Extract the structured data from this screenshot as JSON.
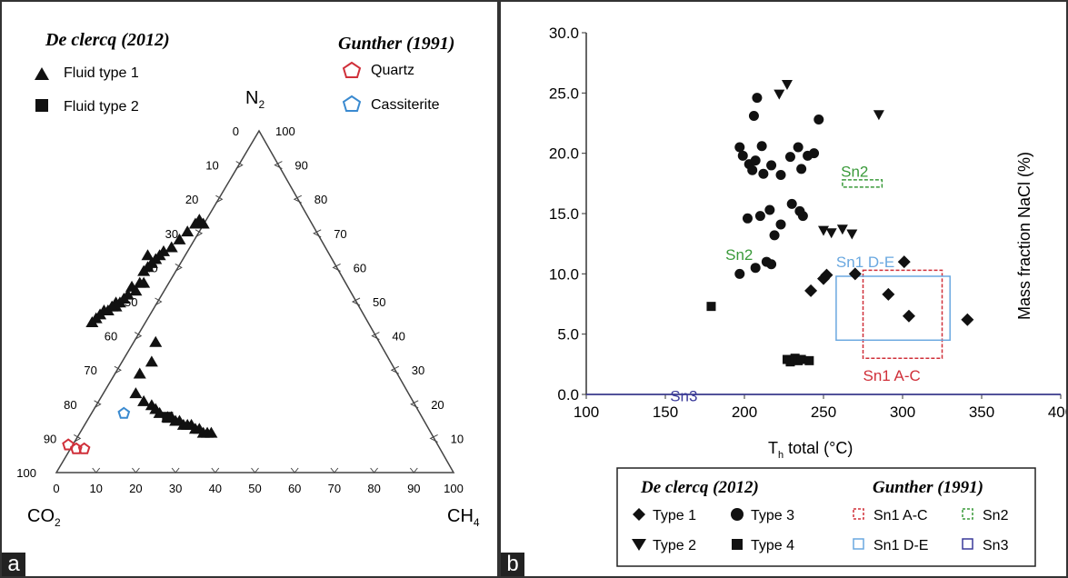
{
  "panel_a": {
    "corner_label": "a",
    "legend_left_title": "De clercq (2012)",
    "legend_right_title": "Gunther (1991)",
    "legend_items": [
      "Fluid type 1",
      "Fluid type 2",
      "Quartz",
      "Cassiterite"
    ],
    "vertex_top": "N",
    "vertex_top_sub": "2",
    "vertex_left": "CO",
    "vertex_left_sub": "2",
    "vertex_right": "CH",
    "vertex_right_sub": "4",
    "left_edge_ticks": [
      "0",
      "10",
      "20",
      "30",
      "40",
      "50",
      "60",
      "70",
      "80",
      "90",
      "100"
    ],
    "right_edge_ticks": [
      "100",
      "90",
      "80",
      "70",
      "60",
      "50",
      "40",
      "30",
      "20",
      "10"
    ],
    "bottom_edge_ticks": [
      "0",
      "10",
      "20",
      "30",
      "40",
      "50",
      "60",
      "70",
      "80",
      "90",
      "100"
    ],
    "colors": {
      "quartz": "#d0303a",
      "cassiterite": "#3a8ad0",
      "marker": "#111111"
    }
  },
  "panel_b": {
    "corner_label": "b",
    "legend_left_title": "De clercq (2012)",
    "legend_right_title": "Gunther (1991)",
    "legend_items": [
      "Type 1",
      "Type 3",
      "Type 2",
      "Type 4",
      "Sn1 A-C",
      "Sn2",
      "Sn1 D-E",
      "Sn3"
    ],
    "colors": {
      "sn1ac": "#d0303a",
      "sn2": "#3a9a3a",
      "sn1de": "#6aa8e0",
      "sn3": "#3a3a9a"
    }
  },
  "chart_data": [
    {
      "type": "scatter",
      "subtype": "ternary",
      "axes": [
        "N2",
        "CO2",
        "CH4"
      ],
      "series": [
        {
          "name": "Fluid type 1",
          "marker": "triangle",
          "points_cartesian": [
            [
              35,
              63
            ],
            [
              36,
              64
            ],
            [
              37,
              63
            ],
            [
              33,
              61
            ],
            [
              31,
              59
            ],
            [
              29,
              57
            ],
            [
              27,
              56
            ],
            [
              26,
              55
            ],
            [
              25,
              54
            ],
            [
              24,
              53
            ],
            [
              23,
              52
            ],
            [
              22,
              51
            ],
            [
              23,
              55
            ],
            [
              21,
              48
            ],
            [
              22,
              48
            ],
            [
              20,
              46
            ],
            [
              19,
              47
            ],
            [
              18,
              45
            ],
            [
              17,
              44
            ],
            [
              16,
              43
            ],
            [
              15,
              43
            ],
            [
              15,
              42
            ],
            [
              14,
              42
            ],
            [
              13,
              41
            ],
            [
              12,
              41
            ],
            [
              11,
              40
            ],
            [
              10,
              39
            ],
            [
              9,
              38
            ],
            [
              25,
              33
            ],
            [
              24,
              28
            ],
            [
              21,
              25
            ],
            [
              20,
              20
            ],
            [
              22,
              18
            ],
            [
              24,
              17
            ],
            [
              25,
              16
            ],
            [
              26,
              15
            ],
            [
              28,
              14
            ],
            [
              29,
              14
            ],
            [
              30,
              13
            ],
            [
              31,
              13
            ],
            [
              32,
              12
            ],
            [
              33,
              12
            ],
            [
              34,
              12
            ],
            [
              35,
              11
            ],
            [
              36,
              11
            ],
            [
              37,
              10
            ],
            [
              38,
              10
            ],
            [
              39,
              10
            ]
          ]
        },
        {
          "name": "Fluid type 2",
          "marker": "square",
          "points_cartesian": [
            [
              28,
              14
            ]
          ]
        },
        {
          "name": "Quartz",
          "marker": "pentagon-open",
          "points_cartesian": [
            [
              3,
              7
            ],
            [
              5,
              6
            ],
            [
              7,
              6
            ]
          ]
        },
        {
          "name": "Cassiterite",
          "marker": "pentagon-open",
          "points_cartesian": [
            [
              17,
              15
            ]
          ]
        }
      ]
    },
    {
      "type": "scatter",
      "xlabel": "T",
      "xlabel_sub": "h",
      "xlabel_rest": " total (°C)",
      "ylabel": "Mass fraction NaCl (%)",
      "xlim": [
        100,
        400
      ],
      "ylim": [
        0,
        30
      ],
      "xticks": [
        "100",
        "150",
        "200",
        "250",
        "300",
        "350",
        "400"
      ],
      "yticks": [
        "0.0",
        "5.0",
        "10.0",
        "15.0",
        "20.0",
        "25.0",
        "30.0"
      ],
      "series": [
        {
          "name": "Type 1",
          "marker": "diamond",
          "points": [
            [
              242,
              8.6
            ],
            [
              250,
              9.6
            ],
            [
              252,
              9.9
            ],
            [
              270,
              10.0
            ],
            [
              291,
              8.3
            ],
            [
              304,
              6.5
            ],
            [
              341,
              6.2
            ],
            [
              301,
              11.0
            ]
          ]
        },
        {
          "name": "Type 2",
          "marker": "triangle-down",
          "points": [
            [
              222,
              24.9
            ],
            [
              227,
              25.7
            ],
            [
              285,
              23.2
            ],
            [
              250,
              13.6
            ],
            [
              255,
              13.4
            ],
            [
              262,
              13.7
            ],
            [
              268,
              13.3
            ]
          ]
        },
        {
          "name": "Type 3",
          "marker": "circle",
          "points": [
            [
              208,
              24.6
            ],
            [
              206,
              23.1
            ],
            [
              247,
              22.8
            ],
            [
              197,
              20.5
            ],
            [
              199,
              19.8
            ],
            [
              211,
              20.6
            ],
            [
              203,
              19.1
            ],
            [
              207,
              19.4
            ],
            [
              205,
              18.6
            ],
            [
              212,
              18.3
            ],
            [
              217,
              19.0
            ],
            [
              223,
              18.2
            ],
            [
              229,
              19.7
            ],
            [
              234,
              20.5
            ],
            [
              236,
              18.7
            ],
            [
              244,
              20.0
            ],
            [
              240,
              19.8
            ],
            [
              202,
              14.6
            ],
            [
              210,
              14.8
            ],
            [
              216,
              15.3
            ],
            [
              219,
              13.2
            ],
            [
              223,
              14.1
            ],
            [
              230,
              15.8
            ],
            [
              237,
              14.8
            ],
            [
              235,
              15.2
            ],
            [
              207,
              10.5
            ],
            [
              214,
              11.0
            ],
            [
              217,
              10.8
            ],
            [
              197,
              10.0
            ]
          ]
        },
        {
          "name": "Type 4",
          "marker": "square",
          "points": [
            [
              179,
              7.3
            ],
            [
              227,
              2.9
            ],
            [
              229,
              2.7
            ],
            [
              232,
              3.0
            ],
            [
              234,
              2.8
            ],
            [
              236,
              2.9
            ],
            [
              241,
              2.8
            ]
          ]
        }
      ],
      "boxes": [
        {
          "name": "Sn1 A-C",
          "x": [
            275,
            325
          ],
          "y": [
            3.0,
            10.3
          ]
        },
        {
          "name": "Sn1 D-E",
          "x": [
            258,
            330
          ],
          "y": [
            4.5,
            9.8
          ]
        },
        {
          "name": "Sn2",
          "x": [
            262,
            287
          ],
          "y": [
            17.2,
            17.8
          ]
        },
        {
          "name": "Sn3",
          "x": [
            100,
            400
          ],
          "y": [
            0,
            0
          ]
        }
      ],
      "box_labels": [
        {
          "text": "Sn2",
          "x": 261,
          "y": 18.5
        },
        {
          "text": "Sn2",
          "x": 188,
          "y": 11.6
        },
        {
          "text": "Sn1 D-E",
          "x": 258,
          "y": 11.0
        },
        {
          "text": "Sn1 A-C",
          "x": 275,
          "y": 1.6
        },
        {
          "text": "Sn3",
          "x": 153,
          "y": -0.1
        }
      ]
    }
  ]
}
